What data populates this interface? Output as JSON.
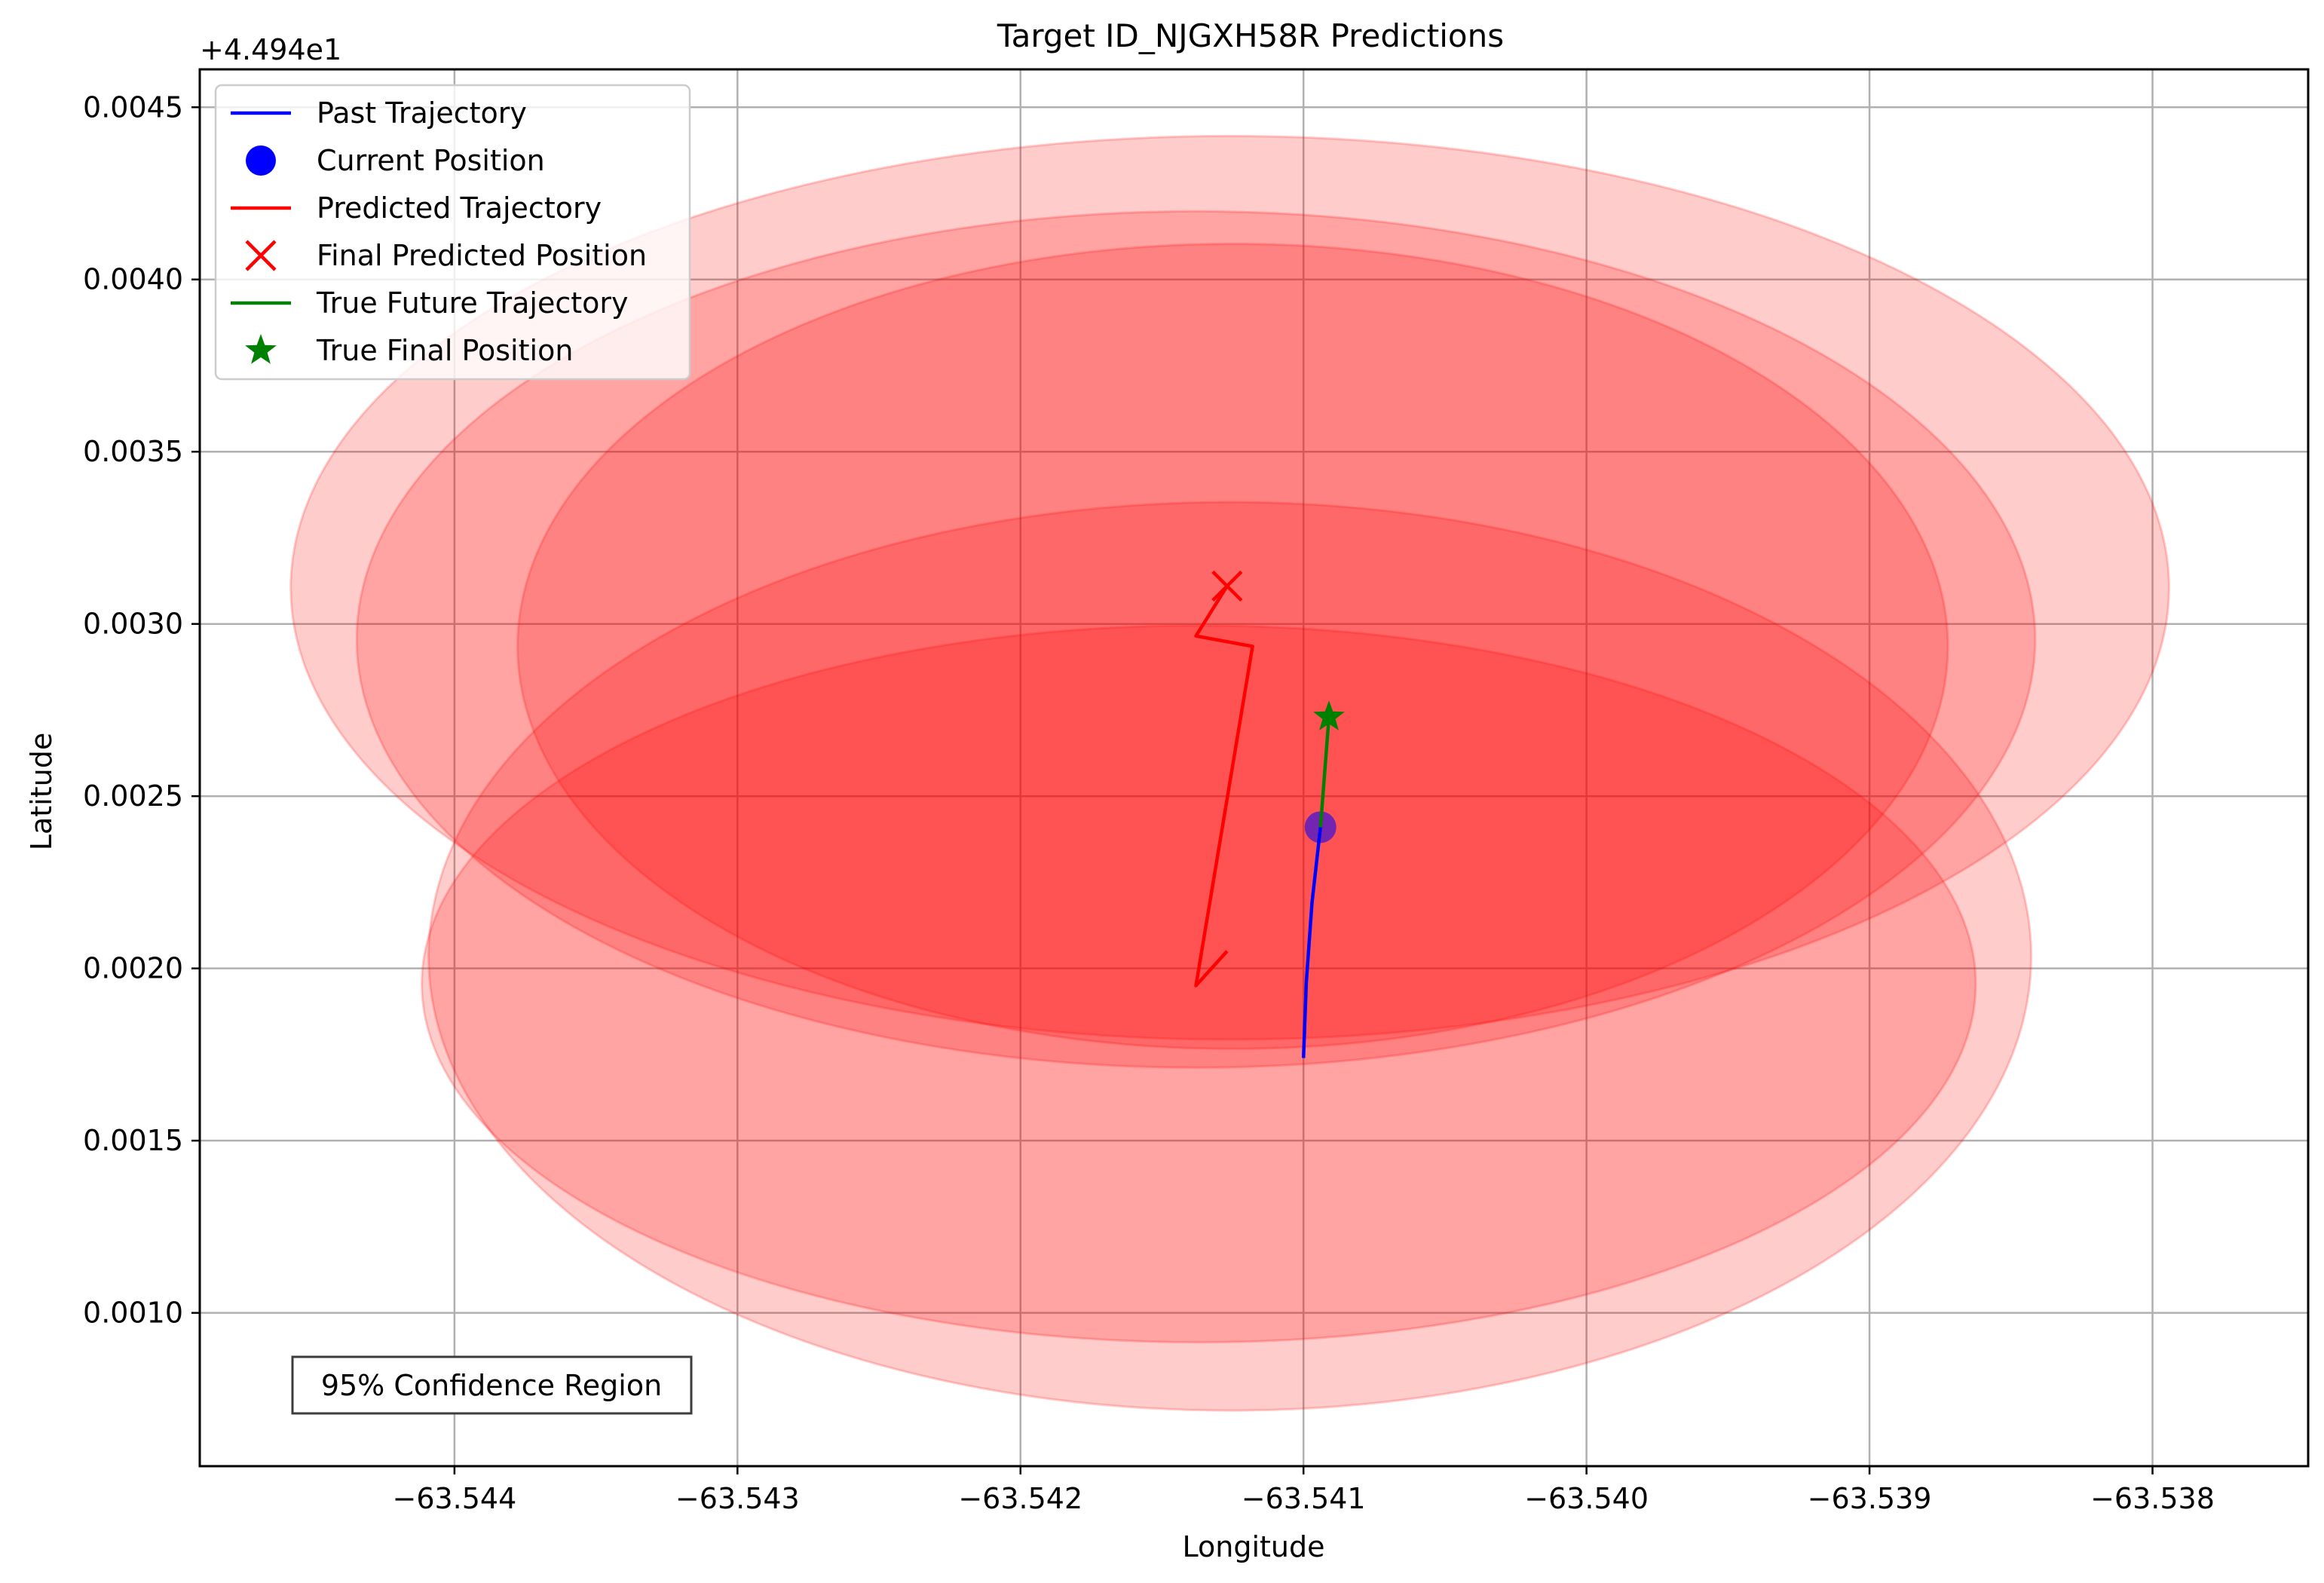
{
  "chart_data": {
    "type": "scatter",
    "title": "Target ID_NJGXH58R Predictions",
    "xlabel": "Longitude",
    "ylabel": "Latitude",
    "y_offset_label": "+4.494e1",
    "xlim": [
      -63.5449,
      -63.53745
    ],
    "ylim": [
      0.000555,
      0.00461
    ],
    "x_ticks": [
      -63.544,
      -63.543,
      -63.542,
      -63.541,
      -63.54,
      -63.539,
      -63.538
    ],
    "x_tick_labels": [
      "−63.544",
      "−63.543",
      "−63.542",
      "−63.541",
      "−63.540",
      "−63.539",
      "−63.538"
    ],
    "y_ticks": [
      0.001,
      0.0015,
      0.002,
      0.0025,
      0.003,
      0.0035,
      0.004,
      0.0045
    ],
    "y_tick_labels": [
      "0.0010",
      "0.0015",
      "0.0020",
      "0.0025",
      "0.0030",
      "0.0035",
      "0.0040",
      "0.0045"
    ],
    "grid": true,
    "legend_position": "top-left",
    "annotation": "95% Confidence Region",
    "colors": {
      "past": "#0000ff",
      "predicted": "#ff0000",
      "true_future": "#008000",
      "confidence": "#ff0000",
      "grid": "#b0b0b0"
    },
    "legend": [
      {
        "label": "Past Trajectory",
        "marker": "line",
        "color": "#0000ff"
      },
      {
        "label": "Current Position",
        "marker": "circle",
        "color": "#0000ff"
      },
      {
        "label": "Predicted Trajectory",
        "marker": "line",
        "color": "#ff0000"
      },
      {
        "label": "Final Predicted Position",
        "marker": "x",
        "color": "#ff0000"
      },
      {
        "label": "True Future Trajectory",
        "marker": "line",
        "color": "#008000"
      },
      {
        "label": "True Final Position",
        "marker": "star",
        "color": "#008000"
      }
    ],
    "confidence_ellipses": [
      {
        "cx": -63.54126,
        "cy": 0.002035,
        "w": 0.005663,
        "h": 0.002637
      },
      {
        "cx": -63.54137,
        "cy": 0.001955,
        "w": 0.005491,
        "h": 0.002081
      },
      {
        "cx": -63.54126,
        "cy": 0.003105,
        "w": 0.006637,
        "h": 0.002623
      },
      {
        "cx": -63.54138,
        "cy": 0.002955,
        "w": 0.005931,
        "h": 0.002486
      },
      {
        "cx": -63.54125,
        "cy": 0.002935,
        "w": 0.005054,
        "h": 0.002337
      }
    ],
    "past_trajectory": {
      "x": [
        -63.541,
        -63.54099,
        -63.54097,
        -63.54094
      ],
      "y": [
        0.00174,
        0.00196,
        0.00219,
        0.00241
      ]
    },
    "current_position": {
      "x": -63.54094,
      "y": 0.00241
    },
    "predicted_trajectory": {
      "x": [
        -63.54127,
        -63.54138,
        -63.54118,
        -63.54138,
        -63.54127
      ],
      "y": [
        0.00205,
        0.00195,
        0.002935,
        0.002965,
        0.00311
      ]
    },
    "final_predicted_position": {
      "x": -63.54127,
      "y": 0.00311
    },
    "true_future_trajectory": {
      "x": [
        -63.54094,
        -63.54091
      ],
      "y": [
        0.00241,
        0.00273
      ]
    },
    "true_final_position": {
      "x": -63.54091,
      "y": 0.00273
    }
  }
}
